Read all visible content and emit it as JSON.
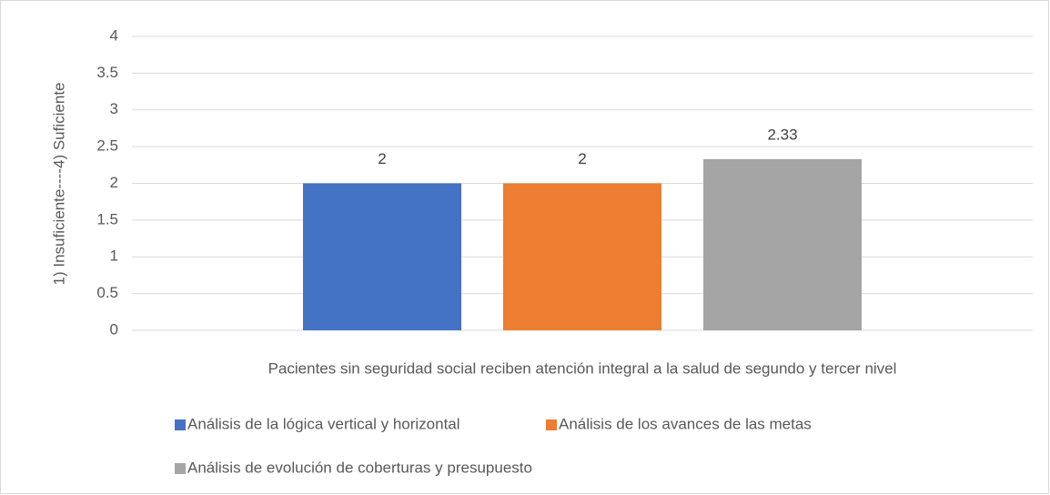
{
  "chart_data": {
    "type": "bar",
    "ylabel": "1) Insuficiente----4) Suficiente",
    "categories": [
      "Pacientes sin seguridad social reciben atención integral a la salud de segundo y tercer nivel"
    ],
    "series": [
      {
        "name": "Análisis de la lógica vertical y horizontal",
        "color": "#4472c4",
        "values": [
          2
        ]
      },
      {
        "name": "Análisis de los avances de las metas",
        "color": "#ed7d31",
        "values": [
          2
        ]
      },
      {
        "name": "Análisis de evolución de coberturas y presupuesto",
        "color": "#a5a5a5",
        "values": [
          2.33
        ]
      }
    ],
    "ylim": [
      0,
      4
    ],
    "yticks": [
      0,
      0.5,
      1,
      1.5,
      2,
      2.5,
      3,
      3.5,
      4
    ],
    "grid": true,
    "legend": "bottom"
  }
}
